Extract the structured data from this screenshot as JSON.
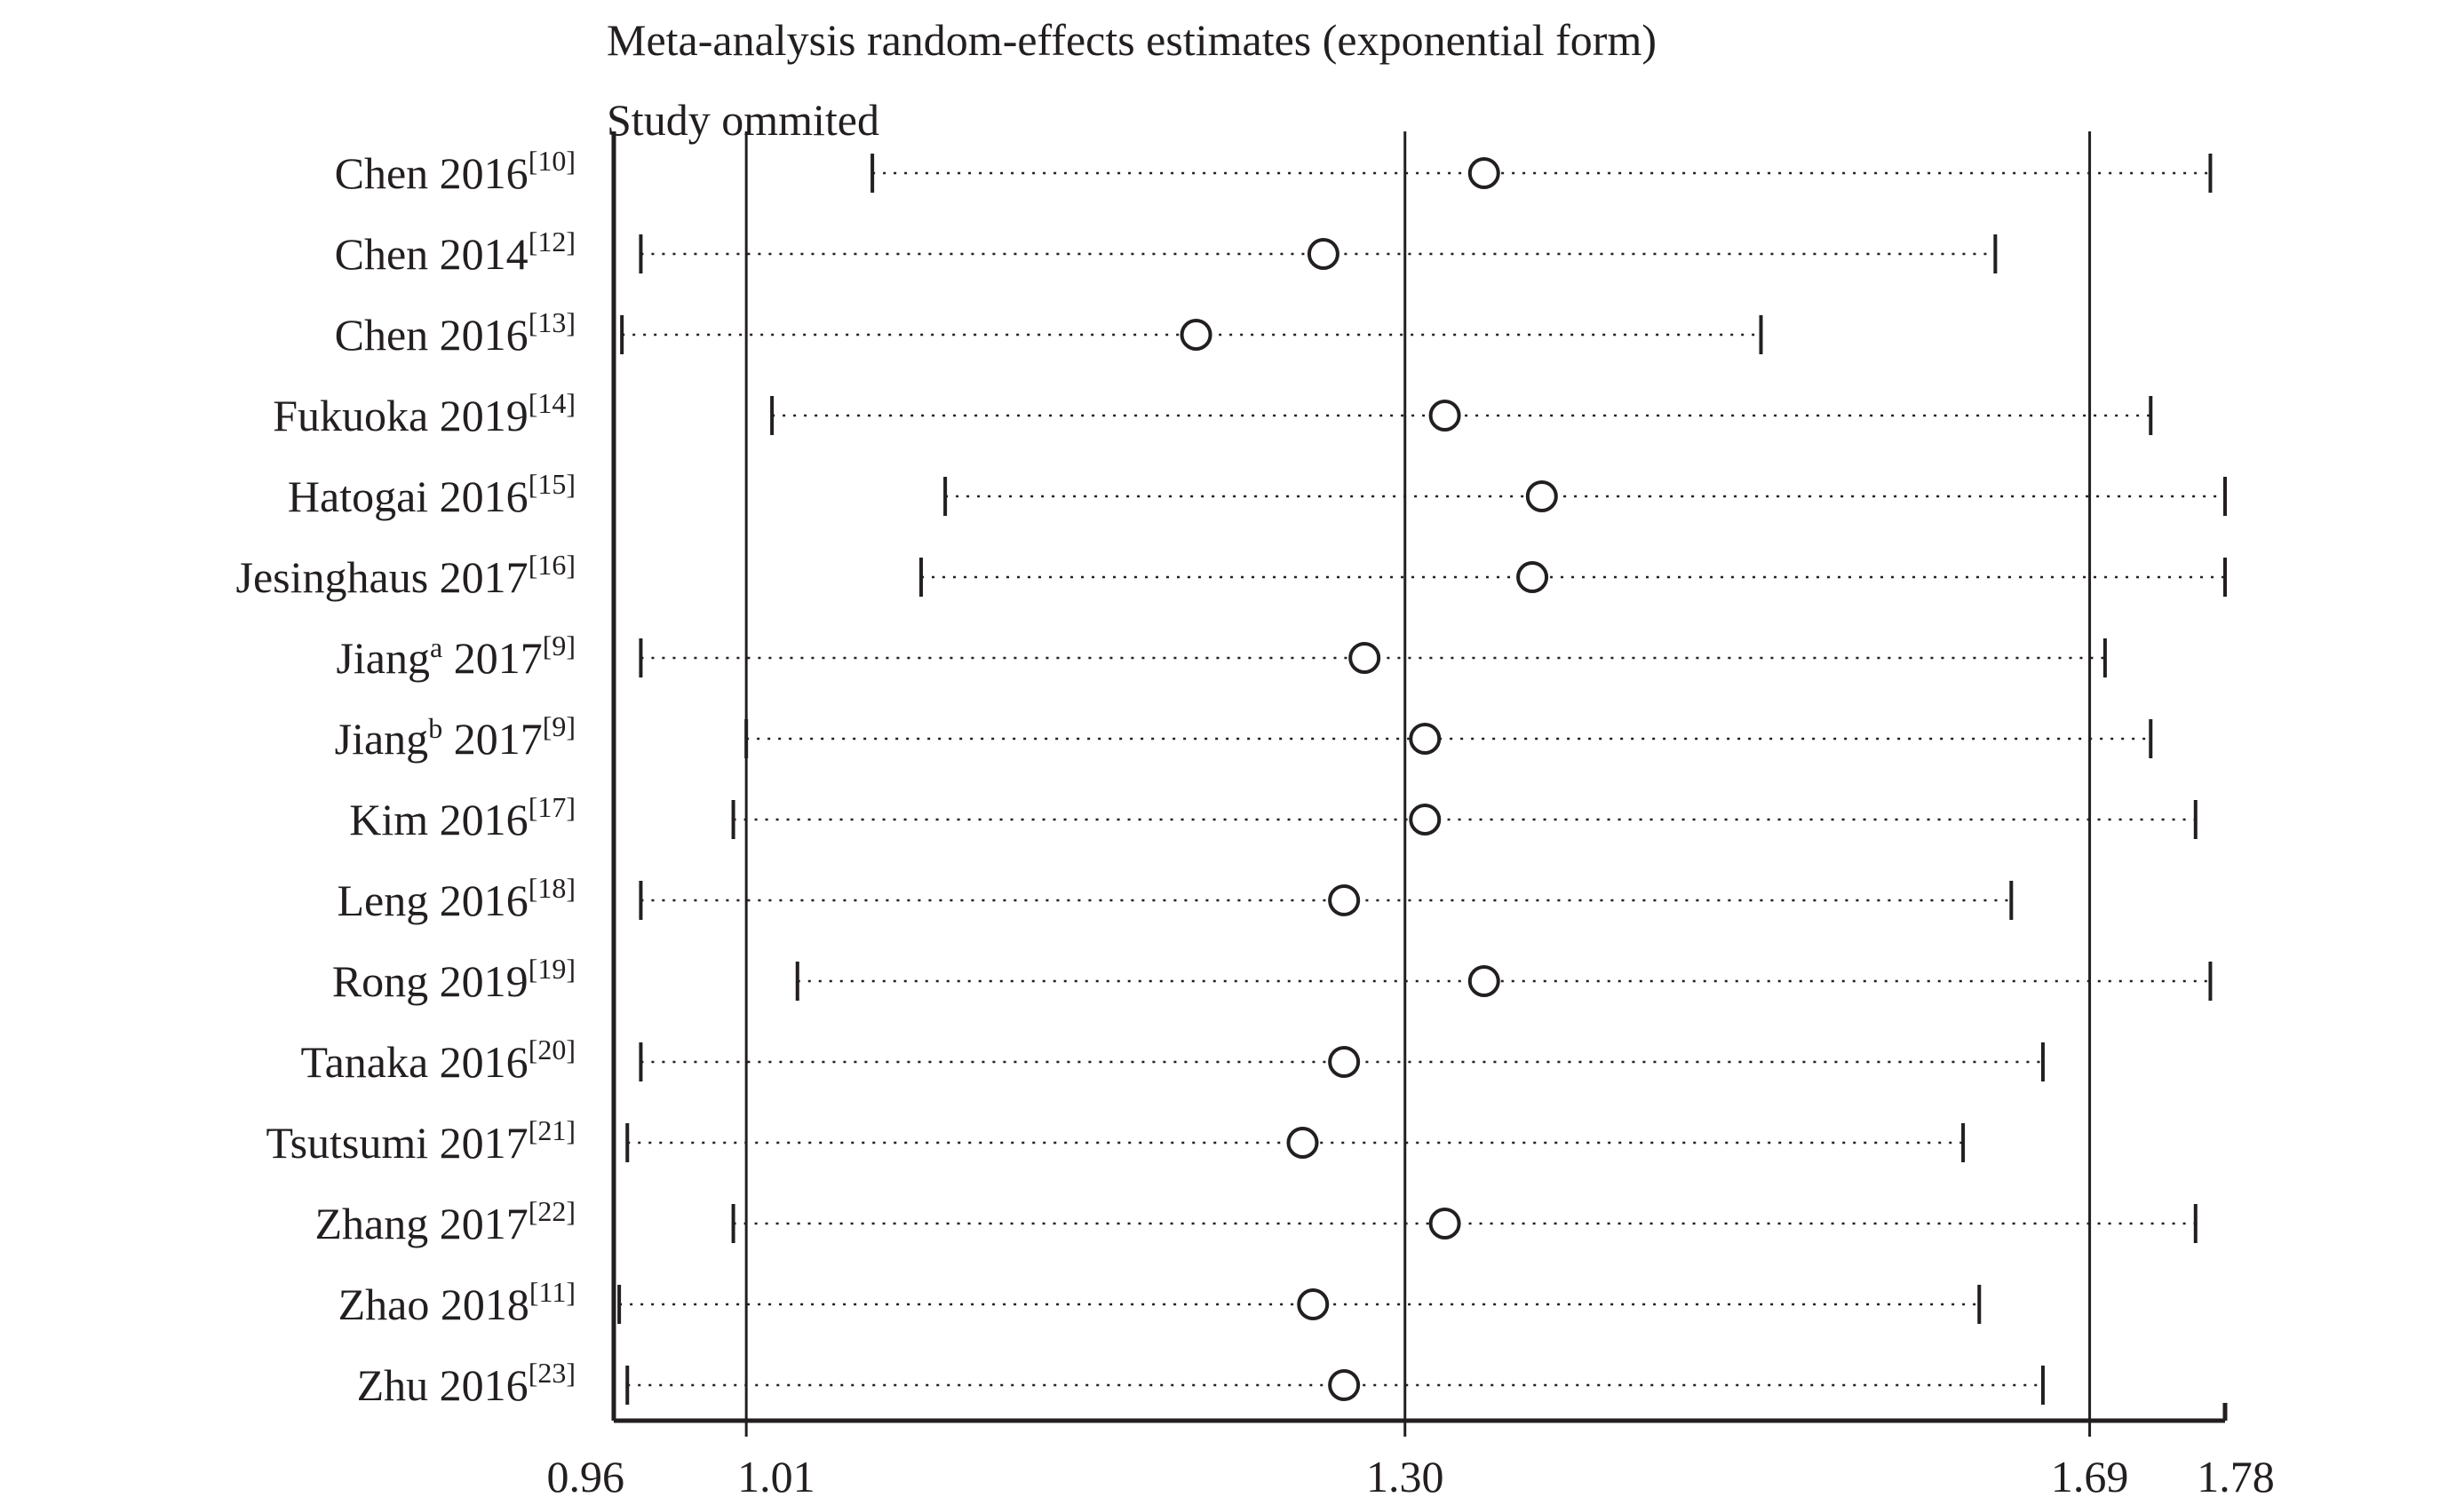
{
  "chart_data": {
    "type": "scatter",
    "title": "Meta-analysis random-effects estimates (exponential form)",
    "subtitle": "Study ommited",
    "xlabel": "",
    "ylabel": "",
    "xscale": "log",
    "xlim": [
      0.96,
      1.78
    ],
    "reference_lines": [
      1.01,
      1.3,
      1.69
    ],
    "x_ticks": [
      "0.96",
      "1.01",
      "1.30",
      "1.69",
      "1.78"
    ],
    "tick_values": [
      0.96,
      1.01,
      1.3,
      1.69,
      1.78
    ],
    "grid": false,
    "legend": "none",
    "studies": [
      {
        "name": "Chen 2016",
        "sup_pre": "",
        "ref": "[10]",
        "estimate": 1.34,
        "lower": 1.06,
        "upper": 1.77
      },
      {
        "name": "Chen 2014",
        "sup_pre": "",
        "ref": "[12]",
        "estimate": 1.26,
        "lower": 0.97,
        "upper": 1.63
      },
      {
        "name": "Chen 2016",
        "sup_pre": "",
        "ref": "[13]",
        "estimate": 1.2,
        "lower": 0.963,
        "upper": 1.49
      },
      {
        "name": "Fukuoka 2019",
        "sup_pre": "",
        "ref": "[14]",
        "estimate": 1.32,
        "lower": 1.02,
        "upper": 1.73
      },
      {
        "name": "Hatogai 2016",
        "sup_pre": "",
        "ref": "[15]",
        "estimate": 1.37,
        "lower": 1.09,
        "upper": 1.78
      },
      {
        "name": "Jesinghaus 2017",
        "sup_pre": "",
        "ref": "[16]",
        "estimate": 1.365,
        "lower": 1.08,
        "upper": 1.78
      },
      {
        "name": "Jiang",
        "sup_pre": "a",
        "ref": "[9]",
        "estimate": 1.28,
        "lower": 0.97,
        "upper": 1.7
      },
      {
        "name": "Jiang",
        "sup_pre": "b",
        "ref": "[9]",
        "estimate": 1.31,
        "lower": 1.01,
        "upper": 1.73
      },
      {
        "name": "Kim 2016",
        "sup_pre": "",
        "ref": "[17]",
        "estimate": 1.31,
        "lower": 1.005,
        "upper": 1.76
      },
      {
        "name": "Leng 2016",
        "sup_pre": "",
        "ref": "[18]",
        "estimate": 1.27,
        "lower": 0.97,
        "upper": 1.64
      },
      {
        "name": "Rong 2019",
        "sup_pre": "",
        "ref": "[19]",
        "estimate": 1.34,
        "lower": 1.03,
        "upper": 1.77
      },
      {
        "name": "Tanaka 2016",
        "sup_pre": "",
        "ref": "[20]",
        "estimate": 1.27,
        "lower": 0.97,
        "upper": 1.66
      },
      {
        "name": "Tsutsumi 2017",
        "sup_pre": "",
        "ref": "[21]",
        "estimate": 1.25,
        "lower": 0.965,
        "upper": 1.61
      },
      {
        "name": "Zhang 2017",
        "sup_pre": "",
        "ref": "[22]",
        "estimate": 1.32,
        "lower": 1.005,
        "upper": 1.76
      },
      {
        "name": "Zhao 2018",
        "sup_pre": "",
        "ref": "[11]",
        "estimate": 1.255,
        "lower": 0.962,
        "upper": 1.62
      },
      {
        "name": "Zhu 2016",
        "sup_pre": "",
        "ref": "[23]",
        "estimate": 1.27,
        "lower": 0.965,
        "upper": 1.66
      }
    ]
  }
}
